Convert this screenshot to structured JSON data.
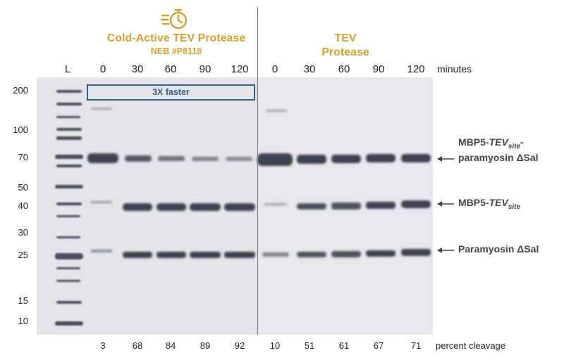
{
  "header_left": {
    "title": "Cold-Active TEV Protease",
    "subtitle": "NEB #P8118",
    "icon": "stopwatch-icon"
  },
  "header_right": {
    "title_line1": "TEV",
    "title_line2": "Protease"
  },
  "ladder_label": "L",
  "minutes_label": "minutes",
  "lanes_left": [
    "0",
    "30",
    "60",
    "90",
    "120"
  ],
  "lanes_right": [
    "0",
    "30",
    "60",
    "90",
    "120"
  ],
  "mw_markers": [
    "200",
    "100",
    "70",
    "50",
    "40",
    "30",
    "25",
    "15",
    "10"
  ],
  "faster_box": "3X faster",
  "bands": {
    "top": {
      "pre": "MBP5-",
      "em": "TEV",
      "sub": "site",
      "post": "-",
      "line2": "paramyosin ΔSal"
    },
    "mid": {
      "pre": "MBP5-",
      "em": "TEV",
      "sub": "site"
    },
    "low": {
      "text": "Paramyosin ΔSal"
    }
  },
  "percent_left": [
    "3",
    "68",
    "84",
    "89",
    "92"
  ],
  "percent_right": [
    "10",
    "51",
    "61",
    "67",
    "71"
  ],
  "percent_label": "percent cleavage",
  "colors": {
    "gold": "#d4a232",
    "box": "#3a5f8a",
    "gel_bg": "#e6e7ea",
    "band": "#3d4250"
  }
}
